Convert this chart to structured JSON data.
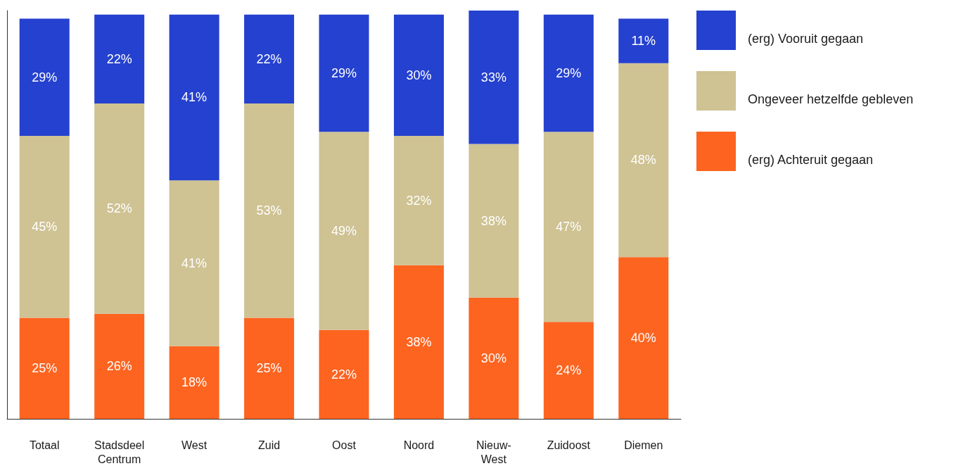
{
  "chart_data": {
    "type": "bar",
    "stacked": true,
    "categories": [
      "Totaal",
      "Stadsdeel Centrum",
      "West",
      "Zuid",
      "Oost",
      "Noord",
      "Nieuw-West",
      "Zuidoost",
      "Diemen"
    ],
    "series": [
      {
        "name": "(erg) Achteruit gegaan",
        "color": "#fc6420",
        "values": [
          25,
          26,
          18,
          25,
          22,
          38,
          30,
          24,
          40
        ],
        "value_labels": [
          "25%",
          "26%",
          "18%",
          "25%",
          "22%",
          "38%",
          "30%",
          "24%",
          "40%"
        ]
      },
      {
        "name": "Ongeveer hetzelfde gebleven",
        "color": "#cfc293",
        "values": [
          45,
          52,
          41,
          53,
          49,
          32,
          38,
          47,
          48
        ],
        "value_labels": [
          "45%",
          "52%",
          "41%",
          "53%",
          "49%",
          "32%",
          "38%",
          "47%",
          "48%"
        ]
      },
      {
        "name": "(erg) Vooruit gegaan",
        "color": "#2541cf",
        "values": [
          29,
          22,
          41,
          22,
          29,
          30,
          33,
          29,
          11
        ],
        "value_labels": [
          "29%",
          "22%",
          "41%",
          "22%",
          "29%",
          "30%",
          "33%",
          "29%",
          "11%"
        ]
      }
    ],
    "ylim": [
      0,
      101
    ],
    "tick_labels": "x",
    "grid": false,
    "legend": "right"
  }
}
